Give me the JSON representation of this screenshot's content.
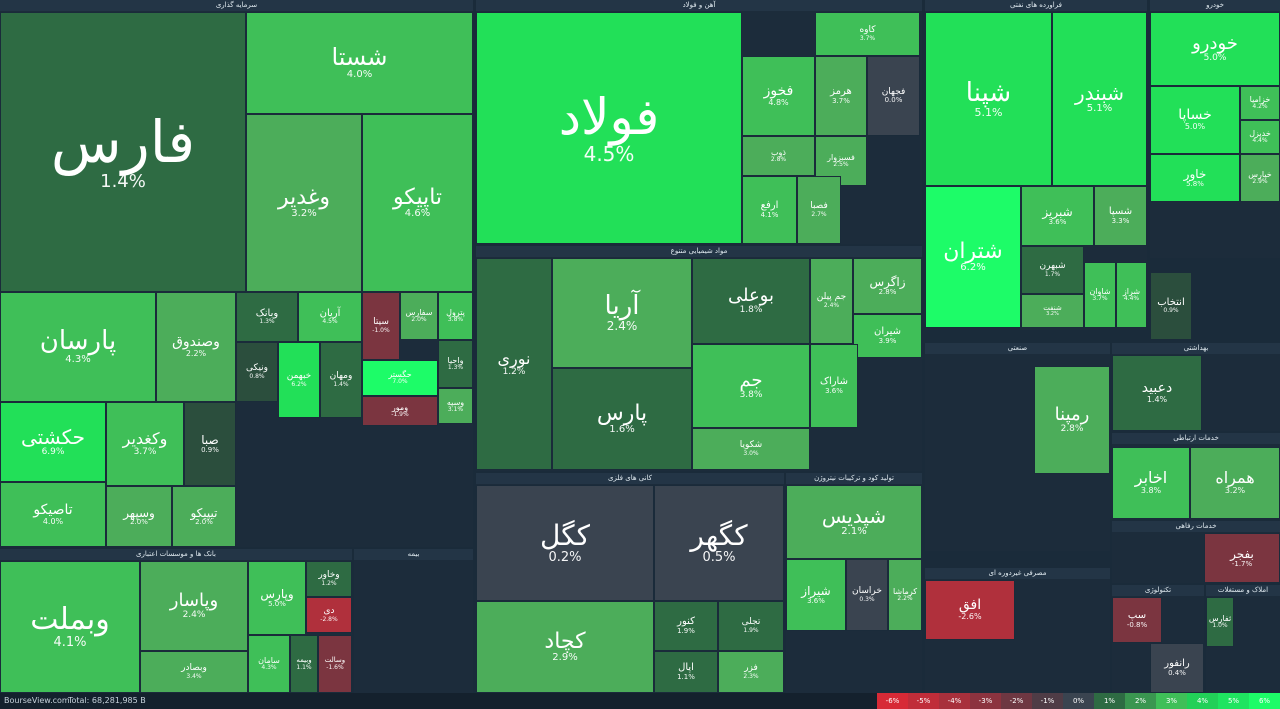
{
  "colors": {
    "g1": "#4cad5a",
    "g2": "#3fbf58",
    "g3": "#22e058",
    "g4": "#1dfc68",
    "d1": "#2e6b43",
    "d2": "#2b4e3d",
    "n": "#3a4450",
    "r1": "#7b3540",
    "r2": "#b0303c",
    "r3": "#d72a36"
  },
  "sectors": [
    {
      "id": "sarmaye",
      "title": "سرمایه گذاری"
    },
    {
      "id": "ahan",
      "title": "آهن و فولاد"
    },
    {
      "id": "naft",
      "title": "فراورده های نفتی"
    },
    {
      "id": "khodro",
      "title": "خودرو"
    },
    {
      "id": "bank",
      "title": "بانک ها و موسسات اعتباری"
    },
    {
      "id": "shimi",
      "title": "مواد شیمیایی متنوع"
    },
    {
      "id": "kani",
      "title": "کانی های فلزی"
    },
    {
      "id": "kood",
      "title": "تولید کود و ترکیبات نیتروژن"
    },
    {
      "id": "bime",
      "title": "بیمه"
    },
    {
      "id": "sanati",
      "title": "صنعتی"
    },
    {
      "id": "behdasht",
      "title": "بهداشتی"
    },
    {
      "id": "ertebat",
      "title": "خدمات ارتباطی"
    },
    {
      "id": "refahi",
      "title": "خدمات رفاهی"
    },
    {
      "id": "masrafi",
      "title": "مصرفی غیردوره ای"
    },
    {
      "id": "techno",
      "title": "تکنولوژی"
    },
    {
      "id": "amlak",
      "title": "املاک و مستغلات"
    }
  ],
  "cells": [
    {
      "sym": "فارس",
      "pct": "1.4%",
      "c": "d1"
    },
    {
      "sym": "شستا",
      "pct": "4.0%",
      "c": "g2"
    },
    {
      "sym": "وغدیر",
      "pct": "3.2%",
      "c": "g1"
    },
    {
      "sym": "تاپیکو",
      "pct": "4.6%",
      "c": "g2"
    },
    {
      "sym": "پارسان",
      "pct": "4.3%",
      "c": "g2"
    },
    {
      "sym": "وصندوق",
      "pct": "2.2%",
      "c": "g1"
    },
    {
      "sym": "حکشتی",
      "pct": "6.9%",
      "c": "g3"
    },
    {
      "sym": "وکغدیر",
      "pct": "3.7%",
      "c": "g2"
    },
    {
      "sym": "صبا",
      "pct": "0.9%",
      "c": "d2"
    },
    {
      "sym": "تاصیکو",
      "pct": "4.0%",
      "c": "g2"
    },
    {
      "sym": "وسپهر",
      "pct": "2.0%",
      "c": "g1"
    },
    {
      "sym": "تیپیکو",
      "pct": "2.0%",
      "c": "g1"
    },
    {
      "sym": "وبانک",
      "pct": "1.3%",
      "c": "d1"
    },
    {
      "sym": "آریان",
      "pct": "4.5%",
      "c": "g2"
    },
    {
      "sym": "سیتا",
      "pct": "-1.0%",
      "c": "r1"
    },
    {
      "sym": "سفارس",
      "pct": "2.0%",
      "c": "g1"
    },
    {
      "sym": "پترول",
      "pct": "3.8%",
      "c": "g2"
    },
    {
      "sym": "ونیکی",
      "pct": "0.8%",
      "c": "d2"
    },
    {
      "sym": "خبهمن",
      "pct": "6.2%",
      "c": "g3"
    },
    {
      "sym": "ومهان",
      "pct": "1.4%",
      "c": "d1"
    },
    {
      "sym": "حگستر",
      "pct": "7.0%",
      "c": "g4"
    },
    {
      "sym": "واحیا",
      "pct": "1.3%",
      "c": "d1"
    },
    {
      "sym": "ومور",
      "pct": "-1.9%",
      "c": "r1"
    },
    {
      "sym": "وسپه",
      "pct": "3.1%",
      "c": "g1"
    },
    {
      "sym": "وبملت",
      "pct": "4.1%",
      "c": "g2"
    },
    {
      "sym": "وپاسار",
      "pct": "2.4%",
      "c": "g1"
    },
    {
      "sym": "وبصادر",
      "pct": "3.4%",
      "c": "g1"
    },
    {
      "sym": "وپارس",
      "pct": "5.0%",
      "c": "g2"
    },
    {
      "sym": "وخاور",
      "pct": "1.2%",
      "c": "d1"
    },
    {
      "sym": "دی",
      "pct": "-2.8%",
      "c": "r2"
    },
    {
      "sym": "سامان",
      "pct": "4.3%",
      "c": "g2"
    },
    {
      "sym": "وبیمه",
      "pct": "1.1%",
      "c": "d1"
    },
    {
      "sym": "وسالت",
      "pct": "-1.6%",
      "c": "r1"
    },
    {
      "sym": "فولاد",
      "pct": "4.5%",
      "c": "g3"
    },
    {
      "sym": "کاوه",
      "pct": "3.7%",
      "c": "g2"
    },
    {
      "sym": "فخوز",
      "pct": "4.8%",
      "c": "g2"
    },
    {
      "sym": "هرمز",
      "pct": "3.7%",
      "c": "g1"
    },
    {
      "sym": "فجهان",
      "pct": "0.0%",
      "c": "n"
    },
    {
      "sym": "ذوب",
      "pct": "2.8%",
      "c": "g1"
    },
    {
      "sym": "فسبزوار",
      "pct": "2.5%",
      "c": "g1"
    },
    {
      "sym": "ارفع",
      "pct": "4.1%",
      "c": "g2"
    },
    {
      "sym": "فصبا",
      "pct": "2.7%",
      "c": "g1"
    },
    {
      "sym": "شپنا",
      "pct": "5.1%",
      "c": "g3"
    },
    {
      "sym": "شبندر",
      "pct": "5.1%",
      "c": "g3"
    },
    {
      "sym": "شتران",
      "pct": "6.2%",
      "c": "g4"
    },
    {
      "sym": "شبریز",
      "pct": "3.6%",
      "c": "g2"
    },
    {
      "sym": "شسپا",
      "pct": "3.3%",
      "c": "g1"
    },
    {
      "sym": "شبهرن",
      "pct": "1.7%",
      "c": "d1"
    },
    {
      "sym": "شنفت",
      "pct": "3.2%",
      "c": "g1"
    },
    {
      "sym": "شاوان",
      "pct": "3.7%",
      "c": "g2"
    },
    {
      "sym": "شراز",
      "pct": "4.4%",
      "c": "g2"
    },
    {
      "sym": "خودرو",
      "pct": "5.0%",
      "c": "g3"
    },
    {
      "sym": "خساپا",
      "pct": "5.0%",
      "c": "g3"
    },
    {
      "sym": "خزامیا",
      "pct": "4.2%",
      "c": "g2"
    },
    {
      "sym": "خدیزل",
      "pct": "4.4%",
      "c": "g2"
    },
    {
      "sym": "خاور",
      "pct": "5.8%",
      "c": "g3"
    },
    {
      "sym": "خپارس",
      "pct": "2.9%",
      "c": "g1"
    },
    {
      "sym": "انتخاب",
      "pct": "0.9%",
      "c": "d2"
    },
    {
      "sym": "آریا",
      "pct": "2.4%",
      "c": "g1"
    },
    {
      "sym": "بوعلی",
      "pct": "1.8%",
      "c": "d1"
    },
    {
      "sym": "زاگرس",
      "pct": "2.8%",
      "c": "g1"
    },
    {
      "sym": "جم پیلن",
      "pct": "2.4%",
      "c": "g1"
    },
    {
      "sym": "شیران",
      "pct": "3.9%",
      "c": "g2"
    },
    {
      "sym": "نوری",
      "pct": "1.2%",
      "c": "d1"
    },
    {
      "sym": "پارس",
      "pct": "1.6%",
      "c": "d1"
    },
    {
      "sym": "جم",
      "pct": "3.8%",
      "c": "g2"
    },
    {
      "sym": "شاراک",
      "pct": "3.6%",
      "c": "g2"
    },
    {
      "sym": "شکویا",
      "pct": "3.0%",
      "c": "g1"
    },
    {
      "sym": "کگل",
      "pct": "0.2%",
      "c": "n"
    },
    {
      "sym": "کگهر",
      "pct": "0.5%",
      "c": "n"
    },
    {
      "sym": "کچاد",
      "pct": "2.9%",
      "c": "g1"
    },
    {
      "sym": "کنور",
      "pct": "1.9%",
      "c": "d1"
    },
    {
      "sym": "اپال",
      "pct": "1.1%",
      "c": "d1"
    },
    {
      "sym": "تجلی",
      "pct": "1.9%",
      "c": "d1"
    },
    {
      "sym": "فزر",
      "pct": "2.3%",
      "c": "g1"
    },
    {
      "sym": "شپدیس",
      "pct": "2.1%",
      "c": "g1"
    },
    {
      "sym": "شیراز",
      "pct": "3.6%",
      "c": "g2"
    },
    {
      "sym": "خراسان",
      "pct": "0.3%",
      "c": "n"
    },
    {
      "sym": "کرماشا",
      "pct": "2.2%",
      "c": "g1"
    },
    {
      "sym": "رمپنا",
      "pct": "2.8%",
      "c": "g1"
    },
    {
      "sym": "دعبید",
      "pct": "1.4%",
      "c": "d1"
    },
    {
      "sym": "اخابر",
      "pct": "3.8%",
      "c": "g2"
    },
    {
      "sym": "همراه",
      "pct": "3.2%",
      "c": "g1"
    },
    {
      "sym": "بفجر",
      "pct": "-1.7%",
      "c": "r1"
    },
    {
      "sym": "افق",
      "pct": "-2.6%",
      "c": "r2"
    },
    {
      "sym": "سپ",
      "pct": "-0.8%",
      "c": "r1"
    },
    {
      "sym": "رانفور",
      "pct": "0.4%",
      "c": "n"
    },
    {
      "sym": "ثفارس",
      "pct": "1.0%",
      "c": "d1"
    }
  ],
  "footer": {
    "brand": "BourseView.com",
    "total": "Total: 68,281,985 B"
  },
  "legend": [
    {
      "label": "-6%",
      "c": "#d72a36"
    },
    {
      "label": "-5%",
      "c": "#c02d39"
    },
    {
      "label": "-4%",
      "c": "#a8303c"
    },
    {
      "label": "-3%",
      "c": "#8c333f"
    },
    {
      "label": "-2%",
      "c": "#6e3742"
    },
    {
      "label": "-1%",
      "c": "#4f3c46"
    },
    {
      "label": "0%",
      "c": "#3a4450"
    },
    {
      "label": "1%",
      "c": "#2e6b43"
    },
    {
      "label": "2%",
      "c": "#3a9650"
    },
    {
      "label": "3%",
      "c": "#3fbf58"
    },
    {
      "label": "4%",
      "c": "#22d058"
    },
    {
      "label": "5%",
      "c": "#1fe460"
    },
    {
      "label": "6%",
      "c": "#1dfc68"
    }
  ]
}
